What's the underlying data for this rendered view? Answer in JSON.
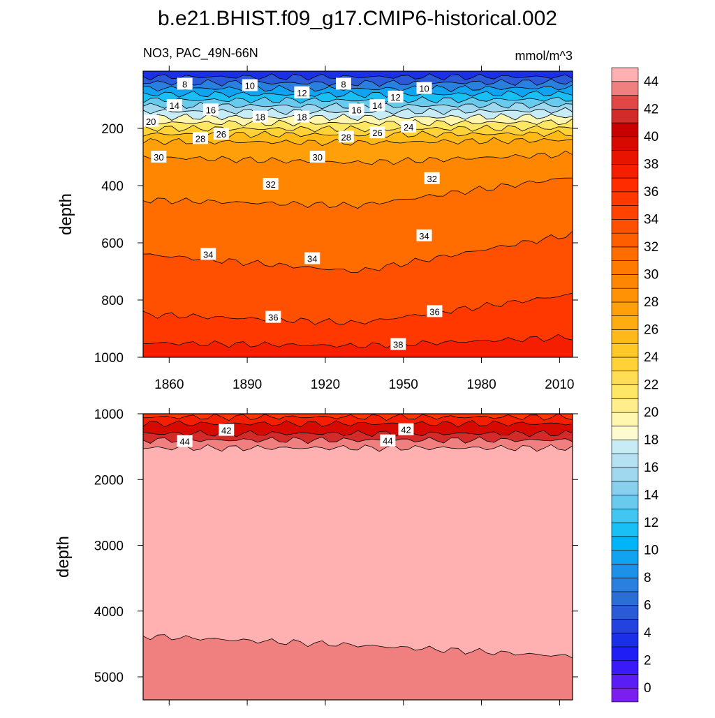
{
  "chart_data": [
    {
      "type": "heatmap",
      "panel": "upper",
      "title": "b.e21.BHIST.f09_g17.CMIP6-historical.002",
      "left_string": "NO3, PAC_49N-66N",
      "right_string": "mmol/m^3",
      "ylabel": "depth",
      "xlabel": "",
      "xlim": [
        1850,
        2015
      ],
      "ylim": [
        0,
        1000
      ],
      "y_reversed": true,
      "xticks": [
        1860,
        1890,
        1920,
        1950,
        1980,
        2010
      ],
      "yticks": [
        200,
        400,
        600,
        800,
        1000
      ],
      "contour_interval": 2,
      "isolines": [
        {
          "level": 6,
          "depth": [
            20,
            20,
            20
          ]
        },
        {
          "level": 8,
          "depth": [
            40,
            42,
            38
          ]
        },
        {
          "level": 10,
          "depth": [
            60,
            62,
            58
          ]
        },
        {
          "level": 12,
          "depth": [
            80,
            82,
            78
          ]
        },
        {
          "level": 14,
          "depth": [
            100,
            102,
            98
          ]
        },
        {
          "level": 16,
          "depth": [
            120,
            122,
            118
          ]
        },
        {
          "level": 18,
          "depth": [
            140,
            142,
            138
          ]
        },
        {
          "level": 20,
          "depth": [
            160,
            162,
            158
          ]
        },
        {
          "level": 22,
          "depth": [
            180,
            182,
            178
          ]
        },
        {
          "level": 24,
          "depth": [
            200,
            202,
            198
          ]
        },
        {
          "level": 26,
          "depth": [
            220,
            222,
            218
          ]
        },
        {
          "level": 28,
          "depth": [
            245,
            250,
            240
          ]
        },
        {
          "level": 30,
          "depth": [
            300,
            320,
            290
          ]
        },
        {
          "level": 32,
          "depth": [
            450,
            470,
            370
          ]
        },
        {
          "level": 34,
          "depth": [
            640,
            700,
            570
          ]
        },
        {
          "level": 36,
          "depth": [
            850,
            880,
            780
          ]
        },
        {
          "level": 38,
          "depth": [
            950,
            960,
            930
          ]
        }
      ],
      "line_labels": [
        {
          "text": "8",
          "year": 1866,
          "depth": 45
        },
        {
          "text": "10",
          "year": 1891,
          "depth": 50
        },
        {
          "text": "12",
          "year": 1911,
          "depth": 75
        },
        {
          "text": "8",
          "year": 1927,
          "depth": 45
        },
        {
          "text": "12",
          "year": 1947,
          "depth": 90
        },
        {
          "text": "10",
          "year": 1958,
          "depth": 60
        },
        {
          "text": "14",
          "year": 1862,
          "depth": 120
        },
        {
          "text": "16",
          "year": 1876,
          "depth": 135
        },
        {
          "text": "18",
          "year": 1895,
          "depth": 160
        },
        {
          "text": "18",
          "year": 1911,
          "depth": 160
        },
        {
          "text": "16",
          "year": 1932,
          "depth": 135
        },
        {
          "text": "14",
          "year": 1940,
          "depth": 120
        },
        {
          "text": "20",
          "year": 1853,
          "depth": 175
        },
        {
          "text": "24",
          "year": 1952,
          "depth": 195
        },
        {
          "text": "26",
          "year": 1880,
          "depth": 220
        },
        {
          "text": "28",
          "year": 1872,
          "depth": 235
        },
        {
          "text": "28",
          "year": 1928,
          "depth": 230
        },
        {
          "text": "26",
          "year": 1940,
          "depth": 215
        },
        {
          "text": "30",
          "year": 1856,
          "depth": 300
        },
        {
          "text": "30",
          "year": 1917,
          "depth": 300
        },
        {
          "text": "32",
          "year": 1899,
          "depth": 395
        },
        {
          "text": "32",
          "year": 1961,
          "depth": 375
        },
        {
          "text": "34",
          "year": 1958,
          "depth": 575
        },
        {
          "text": "34",
          "year": 1875,
          "depth": 640
        },
        {
          "text": "34",
          "year": 1915,
          "depth": 655
        },
        {
          "text": "36",
          "year": 1900,
          "depth": 860
        },
        {
          "text": "36",
          "year": 1962,
          "depth": 840
        },
        {
          "text": "38",
          "year": 1948,
          "depth": 955
        }
      ]
    },
    {
      "type": "heatmap",
      "panel": "lower",
      "ylabel": "depth",
      "xlim": [
        1850,
        2015
      ],
      "ylim": [
        1000,
        5350
      ],
      "y_reversed": true,
      "yticks": [
        1000,
        2000,
        3000,
        4000,
        5000
      ],
      "isolines": [
        {
          "level": 38,
          "depth": [
            1050,
            1050,
            1050
          ]
        },
        {
          "level": 40,
          "depth": [
            1150,
            1150,
            1150
          ]
        },
        {
          "level": 42,
          "depth": [
            1300,
            1300,
            1300
          ]
        },
        {
          "level": 44,
          "depth": [
            1400,
            1400,
            1400
          ]
        },
        {
          "level": 46,
          "depth": [
            1520,
            1520,
            1520
          ]
        },
        {
          "level": 44,
          "depth": [
            4380,
            4520,
            4690
          ]
        }
      ],
      "line_labels": [
        {
          "text": "42",
          "year": 1882,
          "depth": 1250
        },
        {
          "text": "44",
          "year": 1866,
          "depth": 1420
        },
        {
          "text": "42",
          "year": 1951,
          "depth": 1240
        },
        {
          "text": "44",
          "year": 1944,
          "depth": 1410
        }
      ]
    }
  ],
  "colorbar": {
    "labels": [
      "0",
      "2",
      "4",
      "6",
      "8",
      "10",
      "12",
      "14",
      "16",
      "18",
      "20",
      "22",
      "24",
      "26",
      "28",
      "30",
      "32",
      "34",
      "36",
      "38",
      "40",
      "42",
      "44"
    ],
    "colors": [
      "#7b1fee",
      "#5a1ef5",
      "#3a1af8",
      "#1f1ff5",
      "#1a2fe8",
      "#2443de",
      "#2a5ad8",
      "#2a6ed6",
      "#2a80df",
      "#1f90e8",
      "#0fa3f2",
      "#00b4f8",
      "#18c0f5",
      "#40c6f0",
      "#68cbee",
      "#88d0ee",
      "#a0d8f0",
      "#b4e2f2",
      "#c8ecf5",
      "#fffbd0",
      "#fff7b0",
      "#ffef8a",
      "#ffe766",
      "#ffde55",
      "#ffd338",
      "#ffc825",
      "#ffba18",
      "#ffac10",
      "#ffa00a",
      "#ff9205",
      "#ff8600",
      "#ff7a00",
      "#ff6c00",
      "#ff5e00",
      "#ff4f00",
      "#ff4200",
      "#ff3800",
      "#ff2c00",
      "#f51f00",
      "#e81400",
      "#d60a00",
      "#c80000",
      "#d32a2a",
      "#e04848",
      "#f08080",
      "#ffb0b0"
    ]
  }
}
